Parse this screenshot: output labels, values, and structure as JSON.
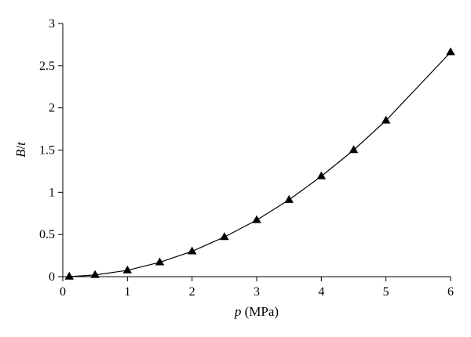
{
  "chart_data": {
    "type": "line",
    "title": "",
    "xlabel": {
      "var": "p",
      "unit": " (MPa)"
    },
    "ylabel": {
      "var": "B",
      "sep": "/",
      "var2": "t"
    },
    "xlim": [
      0,
      6
    ],
    "ylim": [
      0,
      3
    ],
    "xticks": [
      0,
      1,
      2,
      3,
      4,
      5,
      6
    ],
    "yticks": [
      0,
      0.5,
      1,
      1.5,
      2,
      2.5,
      3
    ],
    "xtick_labels": [
      "0",
      "1",
      "2",
      "3",
      "4",
      "5",
      "6"
    ],
    "ytick_labels": [
      "0",
      "0.5",
      "1",
      "1.5",
      "2",
      "2.5",
      "3"
    ],
    "grid": false,
    "legend": "none",
    "marker": "triangle",
    "series": [
      {
        "x": [
          0.1,
          0.5,
          1.0,
          1.5,
          2.0,
          2.5,
          3.0,
          3.5,
          4.0,
          4.5,
          5.0,
          6.0
        ],
        "y": [
          0.0,
          0.02,
          0.075,
          0.17,
          0.3,
          0.47,
          0.67,
          0.91,
          1.19,
          1.5,
          1.85,
          2.66
        ]
      }
    ]
  }
}
